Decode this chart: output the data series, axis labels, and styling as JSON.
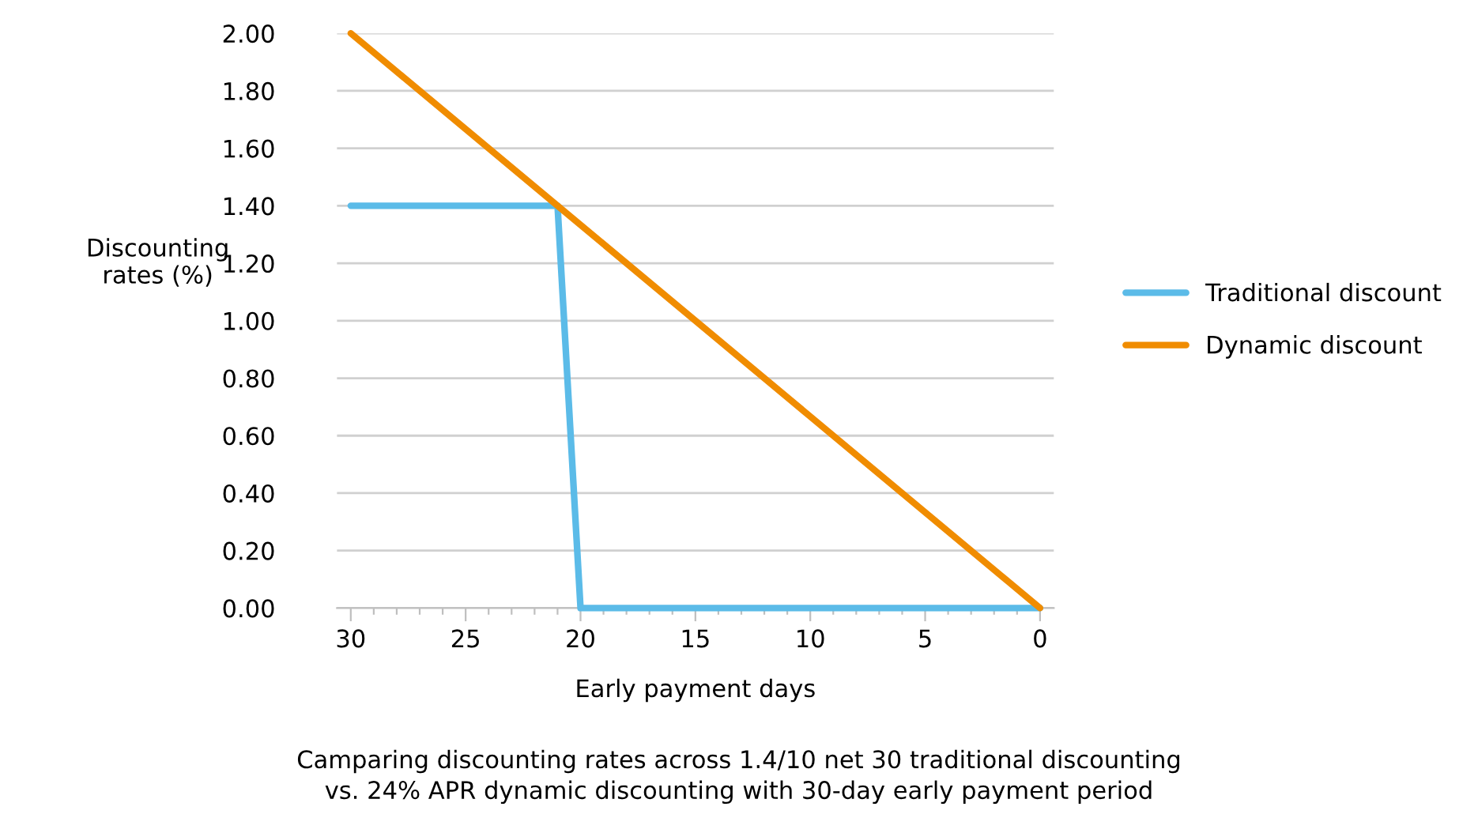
{
  "chart_data": {
    "type": "line",
    "xlabel": "Early payment days",
    "ylabel": "Discounting\nrates (%)",
    "annotations": [
      "Camparing discounting rates across 1.4/10 net 30 traditional discounting\nvs. 24% APR dynamic discounting with 30-day early payment period"
    ],
    "series": [
      {
        "name": "Traditional discount",
        "color": "#5bbbe8",
        "x": [
          30,
          21,
          20,
          0
        ],
        "values": [
          1.4,
          1.4,
          0,
          0
        ]
      },
      {
        "name": "Dynamic discount",
        "color": "#f08c00",
        "x": [
          30,
          0
        ],
        "values": [
          2.0,
          0
        ]
      }
    ],
    "xlim": [
      30.6,
      -0.6
    ],
    "ylim": [
      0,
      2.0
    ],
    "xticks": [
      30,
      {
        "value": 29,
        "label": null
      },
      {
        "value": 28,
        "label": null
      },
      {
        "value": 27,
        "label": null
      },
      {
        "value": 26,
        "label": null
      },
      25,
      {
        "value": 24,
        "label": null
      },
      {
        "value": 23,
        "label": null
      },
      {
        "value": 22,
        "label": null
      },
      {
        "value": 21,
        "label": null
      },
      20,
      {
        "value": 19,
        "label": null
      },
      {
        "value": 18,
        "label": null
      },
      {
        "value": 17,
        "label": null
      },
      {
        "value": 16,
        "label": null
      },
      15,
      {
        "value": 14,
        "label": null
      },
      {
        "value": 13,
        "label": null
      },
      {
        "value": 12,
        "label": null
      },
      {
        "value": 11,
        "label": null
      },
      10,
      {
        "value": 9,
        "label": null
      },
      {
        "value": 8,
        "label": null
      },
      {
        "value": 7,
        "label": null
      },
      {
        "value": 6,
        "label": null
      },
      5,
      {
        "value": 4,
        "label": null
      },
      {
        "value": 3,
        "label": null
      },
      {
        "value": 2,
        "label": null
      },
      {
        "value": 1,
        "label": null
      },
      0
    ],
    "yticks": [
      {
        "value": 0,
        "label": "0.00"
      },
      {
        "value": 0.2,
        "label": "0.20"
      },
      {
        "value": 0.4,
        "label": "0.40"
      },
      {
        "value": 0.6,
        "label": "0.60"
      },
      {
        "value": 0.8,
        "label": "0.80"
      },
      {
        "value": 1.0,
        "label": "1.00"
      },
      {
        "value": 1.2,
        "label": "1.20"
      },
      {
        "value": 1.4,
        "label": "1.40"
      },
      {
        "value": 1.6,
        "label": "1.60"
      },
      {
        "value": 1.8,
        "label": "1.80"
      },
      {
        "value": 2.0,
        "label": "2.00"
      }
    ],
    "grid": "y",
    "legend": "right",
    "marker": "none",
    "line_style": "solid"
  }
}
